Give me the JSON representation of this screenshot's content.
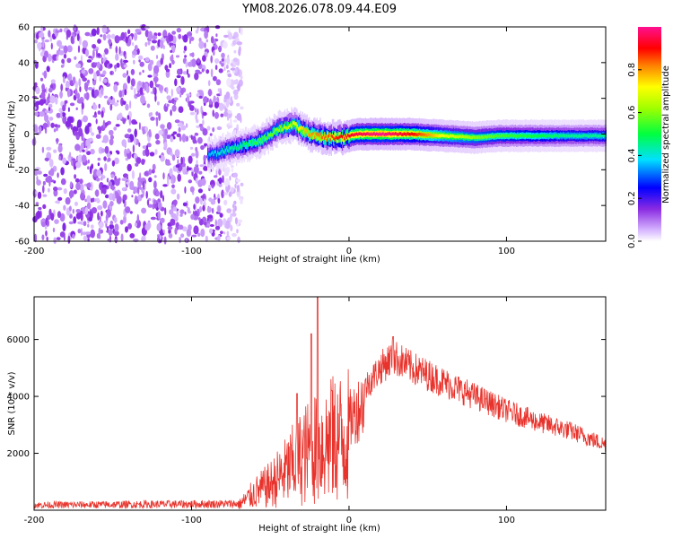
{
  "title": "YM08.2026.078.09.44.E09",
  "chart_data": [
    {
      "type": "heatmap",
      "name": "spectrogram",
      "xlabel": "Height of straight line (km)",
      "ylabel": "Frequency (Hz)",
      "xlim": [
        -200,
        163
      ],
      "ylim": [
        -60,
        60
      ],
      "xticks": [
        -200,
        -100,
        0,
        100
      ],
      "yticks": [
        -60,
        -40,
        -20,
        0,
        20,
        40,
        60
      ],
      "colorbar": {
        "label": "Normalized spectral amplitude",
        "range": [
          0,
          1
        ],
        "ticks": [
          0.0,
          0.2,
          0.4,
          0.6,
          0.8
        ],
        "tick_labels": [
          "0.0",
          "0.2",
          "0.4",
          "0.6",
          "0.8"
        ]
      },
      "noise_region_x": [
        -200,
        -80
      ],
      "signal_track": [
        {
          "x": -90,
          "f": -12,
          "a": 0.35
        },
        {
          "x": -85,
          "f": -11,
          "a": 0.4
        },
        {
          "x": -75,
          "f": -8,
          "a": 0.45
        },
        {
          "x": -65,
          "f": -6,
          "a": 0.5
        },
        {
          "x": -55,
          "f": -3,
          "a": 0.55
        },
        {
          "x": -45,
          "f": 3,
          "a": 0.6
        },
        {
          "x": -35,
          "f": 5,
          "a": 0.7
        },
        {
          "x": -25,
          "f": 0,
          "a": 0.8
        },
        {
          "x": -15,
          "f": -2,
          "a": 0.85
        },
        {
          "x": -5,
          "f": -2,
          "a": 0.9
        },
        {
          "x": 5,
          "f": 0,
          "a": 0.95
        },
        {
          "x": 20,
          "f": 0,
          "a": 1.0
        },
        {
          "x": 40,
          "f": 0,
          "a": 0.9
        },
        {
          "x": 60,
          "f": -1,
          "a": 0.7
        },
        {
          "x": 80,
          "f": -2,
          "a": 0.6
        },
        {
          "x": 95,
          "f": -1,
          "a": 0.55
        },
        {
          "x": 120,
          "f": -1,
          "a": 0.5
        },
        {
          "x": 140,
          "f": -1,
          "a": 0.45
        },
        {
          "x": 163,
          "f": -1,
          "a": 0.45
        }
      ]
    },
    {
      "type": "line",
      "name": "snr",
      "xlabel": "Height of straight line (km)",
      "ylabel": "SNR (10 * v/v)",
      "xlim": [
        -200,
        163
      ],
      "ylim": [
        0,
        7500
      ],
      "xticks": [
        -200,
        -100,
        0,
        100
      ],
      "yticks": [
        2000,
        4000,
        6000
      ],
      "color": "#e8332c",
      "envelope": [
        {
          "x": -200,
          "y": 200
        },
        {
          "x": -70,
          "y": 250
        },
        {
          "x": -60,
          "y": 800
        },
        {
          "x": -50,
          "y": 1200
        },
        {
          "x": -40,
          "y": 1800
        },
        {
          "x": -30,
          "y": 2500
        },
        {
          "x": -20,
          "y": 3000
        },
        {
          "x": -10,
          "y": 3300
        },
        {
          "x": 0,
          "y": 3500
        },
        {
          "x": 10,
          "y": 4300
        },
        {
          "x": 20,
          "y": 5000
        },
        {
          "x": 28,
          "y": 5400
        },
        {
          "x": 40,
          "y": 5000
        },
        {
          "x": 60,
          "y": 4500
        },
        {
          "x": 80,
          "y": 4000
        },
        {
          "x": 100,
          "y": 3500
        },
        {
          "x": 120,
          "y": 3100
        },
        {
          "x": 140,
          "y": 2800
        },
        {
          "x": 163,
          "y": 2300
        }
      ],
      "spikes": [
        {
          "x": -20,
          "y": 7500
        },
        {
          "x": -24,
          "y": 6200
        },
        {
          "x": 28,
          "y": 6100
        },
        {
          "x": -11,
          "y": 4200
        },
        {
          "x": -33,
          "y": 4100
        }
      ]
    }
  ]
}
